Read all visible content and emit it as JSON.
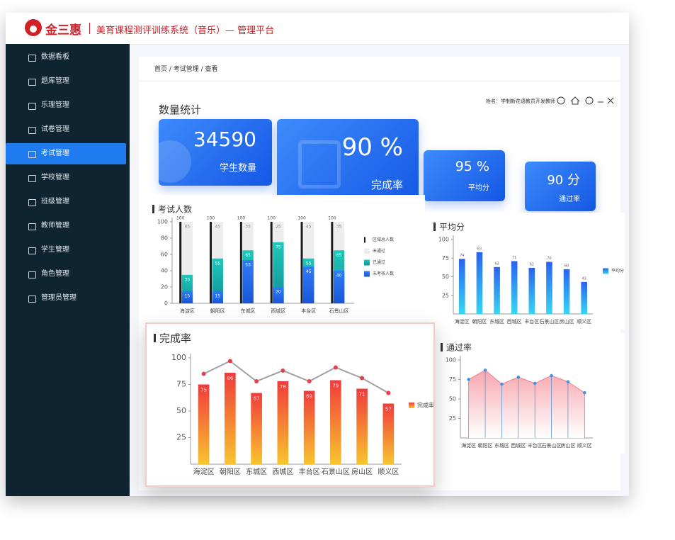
{
  "header": {
    "logo": "金三惠",
    "title": "美育课程测评训练系统（音乐）— 管理平台"
  },
  "sidebar": {
    "items": [
      "数据看板",
      "题库管理",
      "乐理管理",
      "试卷管理",
      "考试管理",
      "学校管理",
      "班级管理",
      "教师管理",
      "学生管理",
      "角色管理",
      "管理员管理"
    ],
    "active": 4
  },
  "breadcrumb": "首页 / 考试管理 / 查看",
  "user": "姓名：学制新花语教员开发教师",
  "section_title": "数量统计",
  "stats": [
    {
      "value": "34590",
      "label": "学生数量"
    },
    {
      "value": "90 %",
      "label": "完成率"
    },
    {
      "value": "95 %",
      "label": "平均分"
    },
    {
      "value": "90 分",
      "label": "通过率"
    }
  ],
  "chart_data": [
    {
      "type": "overlap",
      "title": "考试人数",
      "categories": [
        "海淀区",
        "朝阳区",
        "东城区",
        "西城区",
        "丰台区",
        "石景山区"
      ],
      "ylim": [
        0,
        100
      ],
      "yticks": [
        0,
        20,
        40,
        60,
        80,
        100
      ],
      "series": [
        {
          "name": "区域总人数",
          "color": "#1c1c1c",
          "values": [
            100,
            100,
            100,
            100,
            100,
            100
          ]
        },
        {
          "name": "未通过",
          "color": "#ededed",
          "values": [
            65,
            45,
            35,
            25,
            45,
            35
          ]
        },
        {
          "name": "已通过",
          "gradient": [
            "#1ec8b8",
            "#128f9c"
          ],
          "values": [
            35,
            55,
            65,
            75,
            55,
            65
          ]
        },
        {
          "name": "未考核人数",
          "gradient": [
            "#2f7cf6",
            "#1a56d6"
          ],
          "values": [
            15,
            15,
            53,
            20,
            45,
            40
          ]
        }
      ]
    },
    {
      "type": "bar",
      "title": "平均分",
      "categories": [
        "海淀区",
        "朝阳区",
        "东城区",
        "西城区",
        "丰台区",
        "石景山区",
        "房山区",
        "顺义区"
      ],
      "ylim": [
        0,
        100
      ],
      "yticks": [
        25,
        50,
        75,
        100
      ],
      "series": [
        {
          "name": "平均分",
          "gradient": [
            "#2a63f0",
            "#37d6f3"
          ],
          "values": [
            74,
            83,
            63,
            71,
            62,
            70,
            60,
            43
          ]
        }
      ]
    },
    {
      "type": "barline",
      "title": "完成率",
      "categories": [
        "海淀区",
        "朝阳区",
        "东城区",
        "西城区",
        "丰台区",
        "石景山区",
        "房山区",
        "顺义区"
      ],
      "ylim": [
        0,
        100
      ],
      "yticks": [
        25,
        50,
        75,
        100
      ],
      "series": [
        {
          "name": "完成率",
          "gradient": [
            "#f03b3b",
            "#f8c52e"
          ],
          "values": [
            75,
            86,
            67,
            78,
            69,
            79,
            71,
            57
          ]
        },
        {
          "color": "#a0a0a0",
          "values": [
            85,
            97,
            78,
            88,
            78,
            91,
            81,
            67
          ]
        }
      ]
    },
    {
      "type": "area",
      "title": "通过率",
      "categories": [
        "海淀区",
        "朝阳区",
        "东城区",
        "西城区",
        "丰台区",
        "石景山区",
        "房山区",
        "顺义区"
      ],
      "ylim": [
        0,
        100
      ],
      "yticks": [
        25,
        50,
        75,
        100
      ],
      "series": [
        {
          "color": "#3a8fe8",
          "gradient": [
            "#f7a7ae",
            "#ffffff"
          ],
          "values": [
            75,
            87,
            69,
            78,
            70,
            80,
            72,
            58
          ]
        }
      ]
    }
  ]
}
